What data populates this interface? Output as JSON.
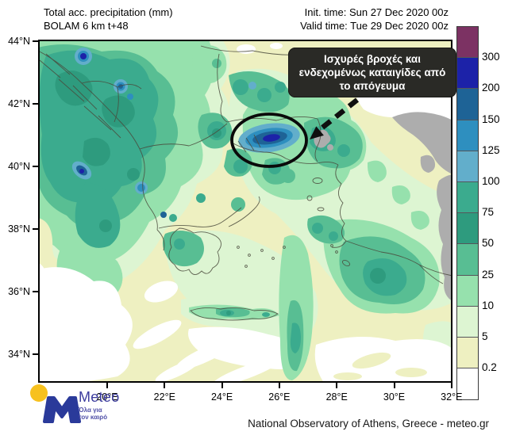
{
  "header": {
    "title_line1": "Total acc. precipitation (mm)",
    "title_line2": "BOLAM 6 km t+48",
    "init_time": "Init. time: Sun 27 Dec 2020 00z",
    "valid_time": "Valid time: Tue 29 Dec 2020 00z"
  },
  "annotation": {
    "line1": "Ισχυρές βροχές και",
    "line2": "ενδεχομένως καταιγίδες από",
    "line3": "το απόγευμα"
  },
  "colorbar": {
    "labels": [
      "300",
      "200",
      "150",
      "125",
      "100",
      "75",
      "50",
      "25",
      "10",
      "5",
      "0.2"
    ],
    "colors": [
      "#7C3263",
      "#1C22A8",
      "#1E6396",
      "#2E8FBF",
      "#62AECB",
      "#3BAB8E",
      "#2E9B7E",
      "#58BE93",
      "#96E1AD",
      "#DDF5D2",
      "#EEF0C1",
      "#FFFFFF"
    ]
  },
  "axes": {
    "lat": [
      "44°N",
      "42°N",
      "40°N",
      "38°N",
      "36°N",
      "34°N"
    ],
    "lon": [
      "20°E",
      "22°E",
      "24°E",
      "26°E",
      "28°E",
      "30°E",
      "32°E"
    ]
  },
  "logo": {
    "brand": "Meteo",
    "tagline_line1": "Όλα για",
    "tagline_line2": "τον καιρό"
  },
  "footer": {
    "attribution": "National Observatory of Athens, Greece - meteo.gr"
  }
}
